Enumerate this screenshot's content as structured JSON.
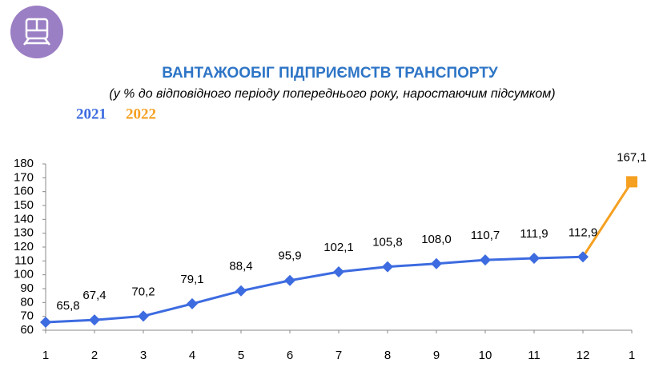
{
  "chart_data": {
    "type": "line",
    "title": "ВАНТАЖООБІГ ПІДПРИЄМСТВ ТРАНСПОРТУ",
    "subtitle": "(у % до відповідного періоду попереднього року, наростаючим підсумком)",
    "categories": [
      "1",
      "2",
      "3",
      "4",
      "5",
      "6",
      "7",
      "8",
      "9",
      "10",
      "11",
      "12",
      "1"
    ],
    "series": [
      {
        "name": "2021",
        "color": "#3d6be0",
        "marker": "diamond",
        "values": [
          65.8,
          67.4,
          70.2,
          79.1,
          88.4,
          95.9,
          102.1,
          105.8,
          108.0,
          110.7,
          111.9,
          112.9,
          null
        ],
        "value_labels": [
          "65,8",
          "67,4",
          "70,2",
          "79,1",
          "88,4",
          "95,9",
          "102,1",
          "105,8",
          "108,0",
          "110,7",
          "111,9",
          "112,9",
          null
        ]
      },
      {
        "name": "2022",
        "color": "#f5a020",
        "marker": "square",
        "values": [
          null,
          null,
          null,
          null,
          null,
          null,
          null,
          null,
          null,
          null,
          null,
          112.9,
          167.1
        ],
        "value_labels": [
          null,
          null,
          null,
          null,
          null,
          null,
          null,
          null,
          null,
          null,
          null,
          null,
          "167,1"
        ]
      }
    ],
    "ylim": [
      60,
      180
    ],
    "yticks": [
      60,
      70,
      80,
      90,
      100,
      110,
      120,
      130,
      140,
      150,
      160,
      170,
      180
    ],
    "grid": false
  }
}
